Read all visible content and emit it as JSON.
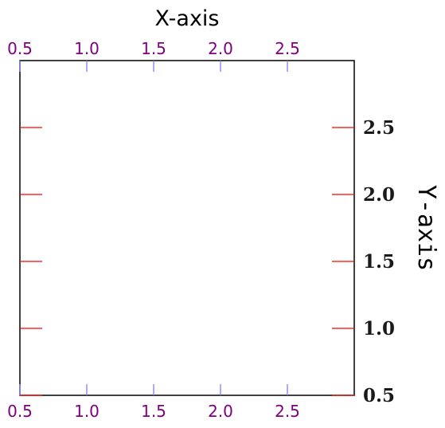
{
  "chart_data": {
    "type": "line",
    "title": "",
    "xlabel": "X-axis",
    "ylabel": "Y-axis",
    "xlim": [
      0.5,
      3.0
    ],
    "ylim": [
      0.5,
      3.0
    ],
    "x_ticks": [
      0.5,
      1.0,
      1.5,
      2.0,
      2.5
    ],
    "x_tick_labels": [
      "0.5",
      "1.0",
      "1.5",
      "2.0",
      "2.5"
    ],
    "y_ticks": [
      0.5,
      1.0,
      1.5,
      2.0,
      2.5
    ],
    "y_tick_labels": [
      "0.5",
      "1.0",
      "1.5",
      "2.0",
      "2.5"
    ],
    "series": [],
    "grid": false,
    "x_ticks_on": "top and bottom",
    "y_ticks_on": "left and right",
    "y_tick_labels_side": "right",
    "x_tick_labels_side": "top and bottom",
    "ylabel_side": "right",
    "colors": {
      "x_tick_label": "#800080",
      "x_tick_mark": "#8080f0",
      "y_tick_mark": "#ff0000",
      "y_tick_label": "#1a1a1a",
      "xlabel": "#000000",
      "ylabel": "#008000",
      "frame": "#000000"
    }
  }
}
